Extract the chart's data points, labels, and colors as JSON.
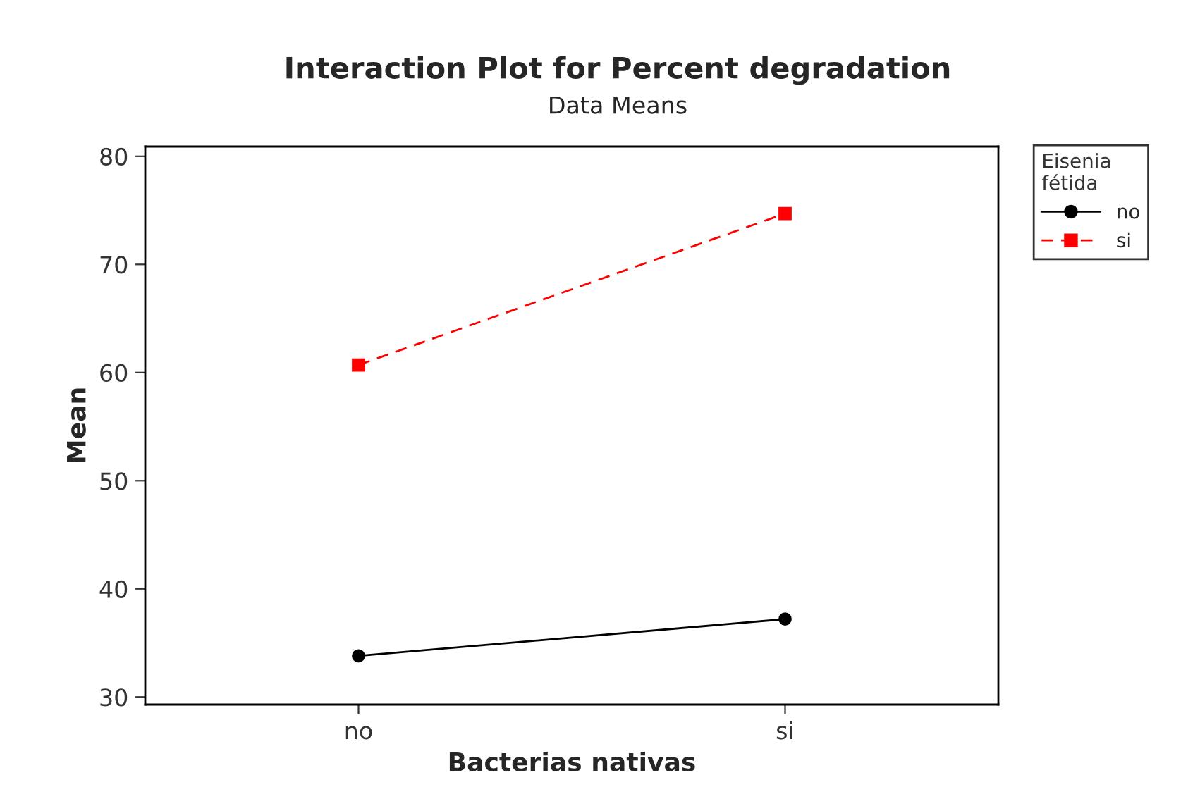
{
  "chart_data": {
    "type": "line",
    "title": "Interaction Plot for Percent degradation",
    "subtitle": "Data Means",
    "xlabel": "Bacterias nativas",
    "ylabel": "Mean",
    "legend_title": "Eisenia\nfétida",
    "categories": [
      "no",
      "si"
    ],
    "series": [
      {
        "name": "no",
        "color": "#000000",
        "values": [
          33.8,
          37.2
        ],
        "marker": "circle",
        "line_style": "solid"
      },
      {
        "name": "si",
        "color": "#ff0000",
        "values": [
          60.7,
          74.7
        ],
        "marker": "square",
        "line_style": "dashed"
      }
    ],
    "ylim": [
      29.3,
      80.9
    ],
    "yticks": [
      30,
      40,
      50,
      60,
      70,
      80
    ],
    "grid": false,
    "legend": "top right"
  }
}
